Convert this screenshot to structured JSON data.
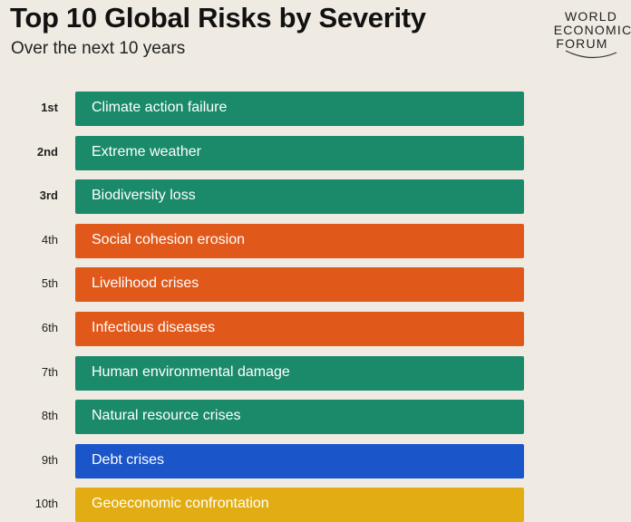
{
  "header": {
    "title": "Top 10 Global Risks by Severity",
    "subtitle": "Over the next 10 years"
  },
  "logo": {
    "line1": "WORLD",
    "line2": "ECONOMIC",
    "line3": "FORUM"
  },
  "colors": {
    "environmental": "#1a8a6a",
    "societal": "#e0591b",
    "economic": "#1a55c9",
    "geopolitical": "#e2ad12"
  },
  "risks": [
    {
      "rank": "1st",
      "label": "Climate action failure",
      "color": "#1a8a6a",
      "rank_bold": true
    },
    {
      "rank": "2nd",
      "label": "Extreme weather",
      "color": "#1a8a6a",
      "rank_bold": true
    },
    {
      "rank": "3rd",
      "label": "Biodiversity loss",
      "color": "#1a8a6a",
      "rank_bold": true
    },
    {
      "rank": "4th",
      "label": "Social cohesion erosion",
      "color": "#e0591b",
      "rank_bold": false
    },
    {
      "rank": "5th",
      "label": "Livelihood crises",
      "color": "#e0591b",
      "rank_bold": false
    },
    {
      "rank": "6th",
      "label": "Infectious diseases",
      "color": "#e0591b",
      "rank_bold": false
    },
    {
      "rank": "7th",
      "label": "Human environmental damage",
      "color": "#1a8a6a",
      "rank_bold": false
    },
    {
      "rank": "8th",
      "label": "Natural resource crises",
      "color": "#1a8a6a",
      "rank_bold": false
    },
    {
      "rank": "9th",
      "label": "Debt crises",
      "color": "#1a55c9",
      "rank_bold": false
    },
    {
      "rank": "10th",
      "label": "Geoeconomic confrontation",
      "color": "#e2ad12",
      "rank_bold": false
    }
  ]
}
